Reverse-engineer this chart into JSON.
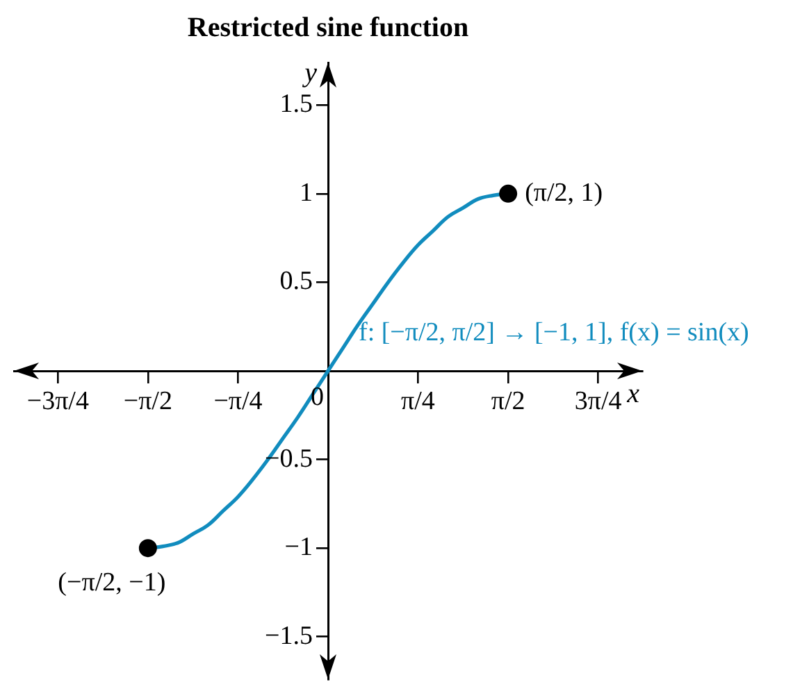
{
  "chart_data": {
    "type": "line",
    "title": "Restricted sine function",
    "xlabel": "x",
    "ylabel": "y",
    "xlim": [
      -2.74,
      2.74
    ],
    "ylim": [
      -1.74,
      1.74
    ],
    "xticks": [
      {
        "value": -2.356,
        "label": "−3π/4"
      },
      {
        "value": -1.571,
        "label": "−π/2"
      },
      {
        "value": -0.785,
        "label": "−π/4"
      },
      {
        "value": 0,
        "label": "0"
      },
      {
        "value": 0.785,
        "label": "π/4"
      },
      {
        "value": 1.571,
        "label": "π/2"
      },
      {
        "value": 2.356,
        "label": "3π/4"
      }
    ],
    "yticks": [
      {
        "value": -1.5,
        "label": "−1.5"
      },
      {
        "value": -1,
        "label": "−1"
      },
      {
        "value": -0.5,
        "label": "−0.5"
      },
      0.5,
      1,
      1.5
    ],
    "series": [
      {
        "type": "line",
        "name": "f: [−π/2, π/2] → [−1, 1], f(x) = sin(x)",
        "color": "#118cbe",
        "x": [
          -1.571,
          -1.44,
          -1.309,
          -1.178,
          -1.047,
          -0.916,
          -0.785,
          -0.654,
          -0.524,
          -0.393,
          -0.262,
          -0.131,
          0,
          0.131,
          0.262,
          0.393,
          0.524,
          0.654,
          0.785,
          0.916,
          1.047,
          1.178,
          1.309,
          1.44,
          1.571
        ],
        "values": [
          -1,
          -0.99,
          -0.97,
          -0.92,
          -0.87,
          -0.79,
          -0.71,
          -0.61,
          -0.5,
          -0.38,
          -0.26,
          -0.13,
          0,
          0.13,
          0.26,
          0.38,
          0.5,
          0.61,
          0.71,
          0.79,
          0.87,
          0.92,
          0.97,
          0.99,
          1
        ]
      },
      {
        "type": "scatter",
        "color": "#000000",
        "marker": "circle",
        "x": [
          -1.571,
          1.571
        ],
        "values": [
          -1,
          1
        ]
      }
    ],
    "annotations": [
      {
        "text": "(π/2, 1)",
        "x": 1.571,
        "y": 1
      },
      {
        "text": "(−π/2, −1)",
        "x": -1.571,
        "y": -1
      }
    ]
  }
}
